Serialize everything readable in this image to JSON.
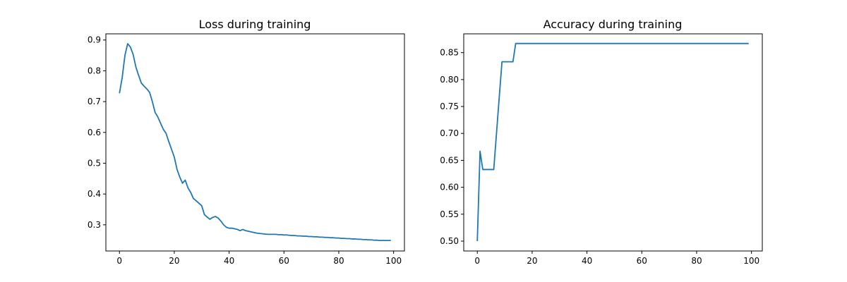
{
  "chart_data": [
    {
      "type": "line",
      "title": "Loss during training",
      "xlabel": "",
      "ylabel": "",
      "xlim": [
        -4.95,
        103.95
      ],
      "ylim": [
        0.215,
        0.92
      ],
      "xticks": [
        0,
        20,
        40,
        60,
        80,
        100
      ],
      "xtick_labels": [
        "0",
        "20",
        "40",
        "60",
        "80",
        "100"
      ],
      "yticks": [
        0.3,
        0.4,
        0.5,
        0.6,
        0.7,
        0.8,
        0.9
      ],
      "ytick_labels": [
        "0.3",
        "0.4",
        "0.5",
        "0.6",
        "0.7",
        "0.8",
        "0.9"
      ],
      "grid": false,
      "series": [
        {
          "name": "loss",
          "color": "#1f77b4",
          "x": [
            0,
            1,
            2,
            3,
            4,
            5,
            6,
            7,
            8,
            9,
            10,
            11,
            12,
            13,
            14,
            15,
            16,
            17,
            18,
            19,
            20,
            21,
            22,
            23,
            24,
            25,
            26,
            27,
            28,
            29,
            30,
            31,
            32,
            33,
            34,
            35,
            36,
            37,
            38,
            39,
            40,
            41,
            42,
            43,
            44,
            45,
            46,
            47,
            48,
            49,
            50,
            51,
            52,
            53,
            54,
            55,
            56,
            57,
            58,
            59,
            60,
            61,
            62,
            63,
            64,
            65,
            66,
            67,
            68,
            69,
            70,
            71,
            72,
            73,
            74,
            75,
            76,
            77,
            78,
            79,
            80,
            81,
            82,
            83,
            84,
            85,
            86,
            87,
            88,
            89,
            90,
            91,
            92,
            93,
            94,
            95,
            96,
            97,
            98,
            99
          ],
          "values": [
            0.727,
            0.778,
            0.85,
            0.888,
            0.877,
            0.853,
            0.812,
            0.785,
            0.76,
            0.75,
            0.741,
            0.73,
            0.7,
            0.665,
            0.65,
            0.63,
            0.61,
            0.597,
            0.57,
            0.545,
            0.52,
            0.48,
            0.455,
            0.435,
            0.445,
            0.42,
            0.405,
            0.385,
            0.378,
            0.37,
            0.362,
            0.333,
            0.325,
            0.318,
            0.324,
            0.327,
            0.322,
            0.312,
            0.3,
            0.292,
            0.289,
            0.289,
            0.287,
            0.285,
            0.281,
            0.285,
            0.281,
            0.279,
            0.277,
            0.275,
            0.273,
            0.272,
            0.271,
            0.27,
            0.269,
            0.269,
            0.269,
            0.269,
            0.268,
            0.268,
            0.267,
            0.267,
            0.266,
            0.265,
            0.265,
            0.264,
            0.264,
            0.263,
            0.263,
            0.262,
            0.262,
            0.261,
            0.261,
            0.26,
            0.26,
            0.259,
            0.259,
            0.258,
            0.258,
            0.257,
            0.257,
            0.256,
            0.256,
            0.255,
            0.255,
            0.254,
            0.254,
            0.253,
            0.253,
            0.252,
            0.252,
            0.251,
            0.251,
            0.25,
            0.25,
            0.249,
            0.249,
            0.249,
            0.249,
            0.249
          ]
        }
      ]
    },
    {
      "type": "line",
      "title": "Accuracy during training",
      "xlabel": "",
      "ylabel": "",
      "xlim": [
        -4.95,
        103.95
      ],
      "ylim": [
        0.4817,
        0.8849
      ],
      "xticks": [
        0,
        20,
        40,
        60,
        80,
        100
      ],
      "xtick_labels": [
        "0",
        "20",
        "40",
        "60",
        "80",
        "100"
      ],
      "yticks": [
        0.5,
        0.55,
        0.6,
        0.65,
        0.7,
        0.75,
        0.8,
        0.85
      ],
      "ytick_labels": [
        "0.50",
        "0.55",
        "0.60",
        "0.65",
        "0.70",
        "0.75",
        "0.80",
        "0.85"
      ],
      "grid": false,
      "series": [
        {
          "name": "accuracy",
          "color": "#1f77b4",
          "x": [
            0,
            1,
            2,
            3,
            4,
            5,
            6,
            7,
            8,
            9,
            10,
            11,
            12,
            13,
            14,
            20,
            40,
            60,
            80,
            99
          ],
          "values": [
            0.5,
            0.667,
            0.633,
            0.633,
            0.633,
            0.633,
            0.633,
            0.7,
            0.767,
            0.833,
            0.833,
            0.833,
            0.833,
            0.833,
            0.867,
            0.867,
            0.867,
            0.867,
            0.867,
            0.867
          ]
        }
      ]
    }
  ]
}
